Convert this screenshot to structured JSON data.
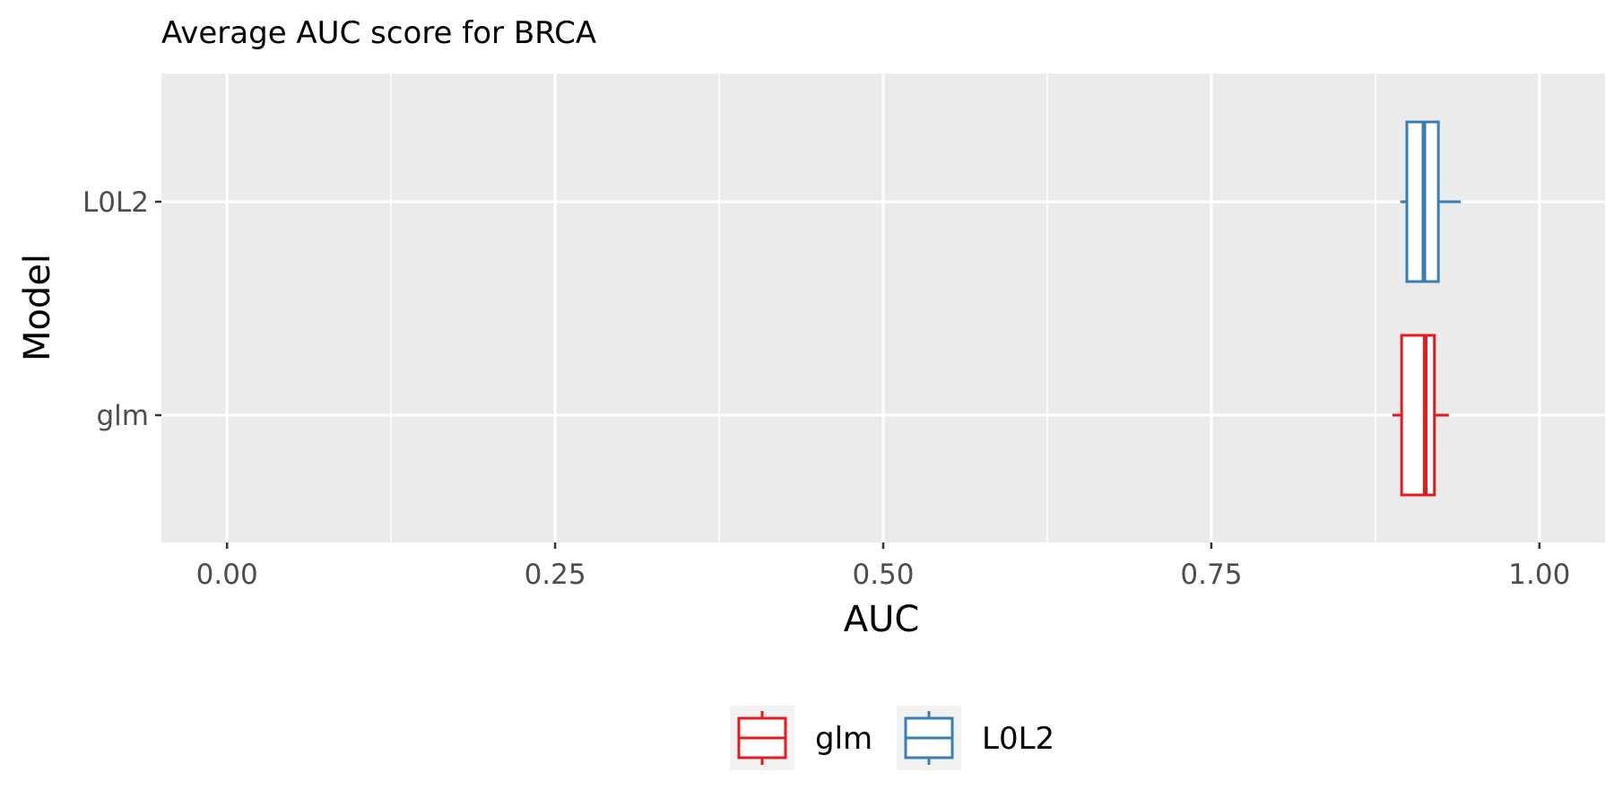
{
  "chart_data": {
    "type": "boxplot",
    "orientation": "horizontal",
    "title": "Average AUC score for BRCA",
    "xlabel": "AUC",
    "ylabel": "Model",
    "xlim": [
      -0.05,
      1.05
    ],
    "x_ticks": [
      0.0,
      0.25,
      0.5,
      0.75,
      1.0
    ],
    "x_tick_labels": [
      "0.00",
      "0.25",
      "0.50",
      "0.75",
      "1.00"
    ],
    "categories": [
      "glm",
      "L0L2"
    ],
    "series": [
      {
        "name": "glm",
        "color": "#e41a1c",
        "whisker_low": 0.888,
        "q1": 0.895,
        "median": 0.913,
        "q3": 0.92,
        "whisker_high": 0.931
      },
      {
        "name": "L0L2",
        "color": "#377eb8",
        "whisker_low": 0.894,
        "q1": 0.899,
        "median": 0.912,
        "q3": 0.923,
        "whisker_high": 0.94
      }
    ],
    "grid": true,
    "panel_background": "#ebebeb",
    "legend": {
      "position": "bottom",
      "entries": [
        "glm",
        "L0L2"
      ]
    }
  }
}
